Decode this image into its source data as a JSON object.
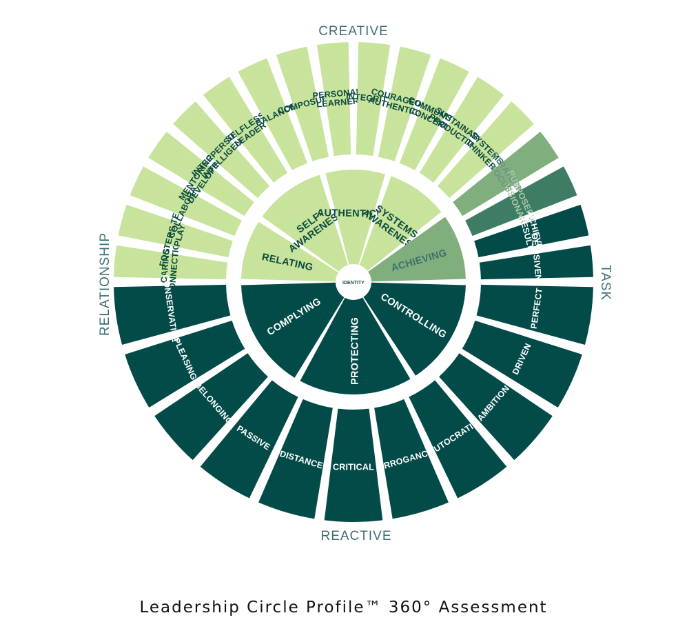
{
  "caption": "Leadership Circle Profile™ 360° Assessment",
  "axis_labels": {
    "top": "CREATIVE",
    "bottom": "REACTIVE",
    "left": "RELATIONSHIP",
    "right": "TASK"
  },
  "core_label": "IDENTITY",
  "colors": {
    "light_green": "#c8e39c",
    "mid_green": "#80ae7d",
    "teal_green": "#3e7d63",
    "dark_teal": "#024b48",
    "light_text": "#0b4a3f",
    "mid_text": "#6b958b",
    "axis_text": "#3e6f70"
  },
  "inner_segments": [
    {
      "label": "RELATING",
      "color": "#c8e39c",
      "text_color": "#0b4a3f"
    },
    {
      "label": "SELF- AWARENESS",
      "color": "#c8e39c",
      "text_color": "#0b4a3f"
    },
    {
      "label": "AUTHENTICITY",
      "color": "#c8e39c",
      "text_color": "#0b4a3f"
    },
    {
      "label": "SYSTEMS AWARENESS",
      "color": "#c8e39c",
      "text_color": "#0b4a3f"
    },
    {
      "label": "ACHIEVING",
      "color": "#80ae7d",
      "text_color": "#3e6f70"
    },
    {
      "label": "CONTROLLING",
      "color": "#024b48",
      "text_color": "#ffffff"
    },
    {
      "label": "PROTECTING",
      "color": "#024b48",
      "text_color": "#ffffff"
    },
    {
      "label": "COMPLYING",
      "color": "#024b48",
      "text_color": "#ffffff"
    }
  ],
  "outer_top": [
    {
      "label": "CARING CONNECTION",
      "color": "#c8e39c",
      "text_color": "#0b4a3f"
    },
    {
      "label": "FOSTERS TEAM PLAY",
      "color": "#c8e39c",
      "text_color": "#0b4a3f"
    },
    {
      "label": "COLLABORATOR",
      "color": "#c8e39c",
      "text_color": "#0b4a3f"
    },
    {
      "label": "MENTORING & DEVELOPING",
      "color": "#c8e39c",
      "text_color": "#0b4a3f"
    },
    {
      "label": "INTERPERSONAL INTELLIGENCE",
      "color": "#c8e39c",
      "text_color": "#0b4a3f"
    },
    {
      "label": "SELFLESS LEADER",
      "color": "#c8e39c",
      "text_color": "#0b4a3f"
    },
    {
      "label": "BALANCE",
      "color": "#c8e39c",
      "text_color": "#0b4a3f"
    },
    {
      "label": "COMPOSURE",
      "color": "#c8e39c",
      "text_color": "#0b4a3f"
    },
    {
      "label": "PERSONAL LEARNER",
      "color": "#c8e39c",
      "text_color": "#0b4a3f"
    },
    {
      "label": "INTEGRITY",
      "color": "#c8e39c",
      "text_color": "#0b4a3f"
    },
    {
      "label": "COURAGEOUS AUTHENTICITY",
      "color": "#c8e39c",
      "text_color": "#0b4a3f"
    },
    {
      "label": "COMMUNITY CONCERN",
      "color": "#c8e39c",
      "text_color": "#0b4a3f"
    },
    {
      "label": "SUSTAINABLE PRODUCTIVITY",
      "color": "#c8e39c",
      "text_color": "#0b4a3f"
    },
    {
      "label": "SYSTEMS THINKER",
      "color": "#c8e39c",
      "text_color": "#0b4a3f"
    },
    {
      "label": "STRATEGIC FOCUS",
      "color": "#80ae7d",
      "text_color": "#6b958b"
    },
    {
      "label": "PURPOSEFUL & VISIONARY",
      "color": "#3e7d63",
      "text_color": "#a9c7a6"
    },
    {
      "label": "ACHIEVES RESULTS",
      "color": "#024b48",
      "text_color": "#ffffff"
    },
    {
      "label": "DECISIVENESS",
      "color": "#024b48",
      "text_color": "#ffffff"
    }
  ],
  "outer_bottom": [
    {
      "label": "PERFECT",
      "color": "#024b48",
      "text_color": "#ffffff"
    },
    {
      "label": "DRIVEN",
      "color": "#024b48",
      "text_color": "#ffffff"
    },
    {
      "label": "AMBITION",
      "color": "#024b48",
      "text_color": "#ffffff"
    },
    {
      "label": "AUTOCRATIC",
      "color": "#024b48",
      "text_color": "#ffffff"
    },
    {
      "label": "ARROGANCE",
      "color": "#024b48",
      "text_color": "#ffffff"
    },
    {
      "label": "CRITICAL",
      "color": "#024b48",
      "text_color": "#ffffff"
    },
    {
      "label": "DISTANCE",
      "color": "#024b48",
      "text_color": "#ffffff"
    },
    {
      "label": "PASSIVE",
      "color": "#024b48",
      "text_color": "#ffffff"
    },
    {
      "label": "BELONGING",
      "color": "#024b48",
      "text_color": "#ffffff"
    },
    {
      "label": "PLEASING",
      "color": "#024b48",
      "text_color": "#ffffff"
    },
    {
      "label": "CONSERVATIVE",
      "color": "#024b48",
      "text_color": "#ffffff"
    }
  ]
}
